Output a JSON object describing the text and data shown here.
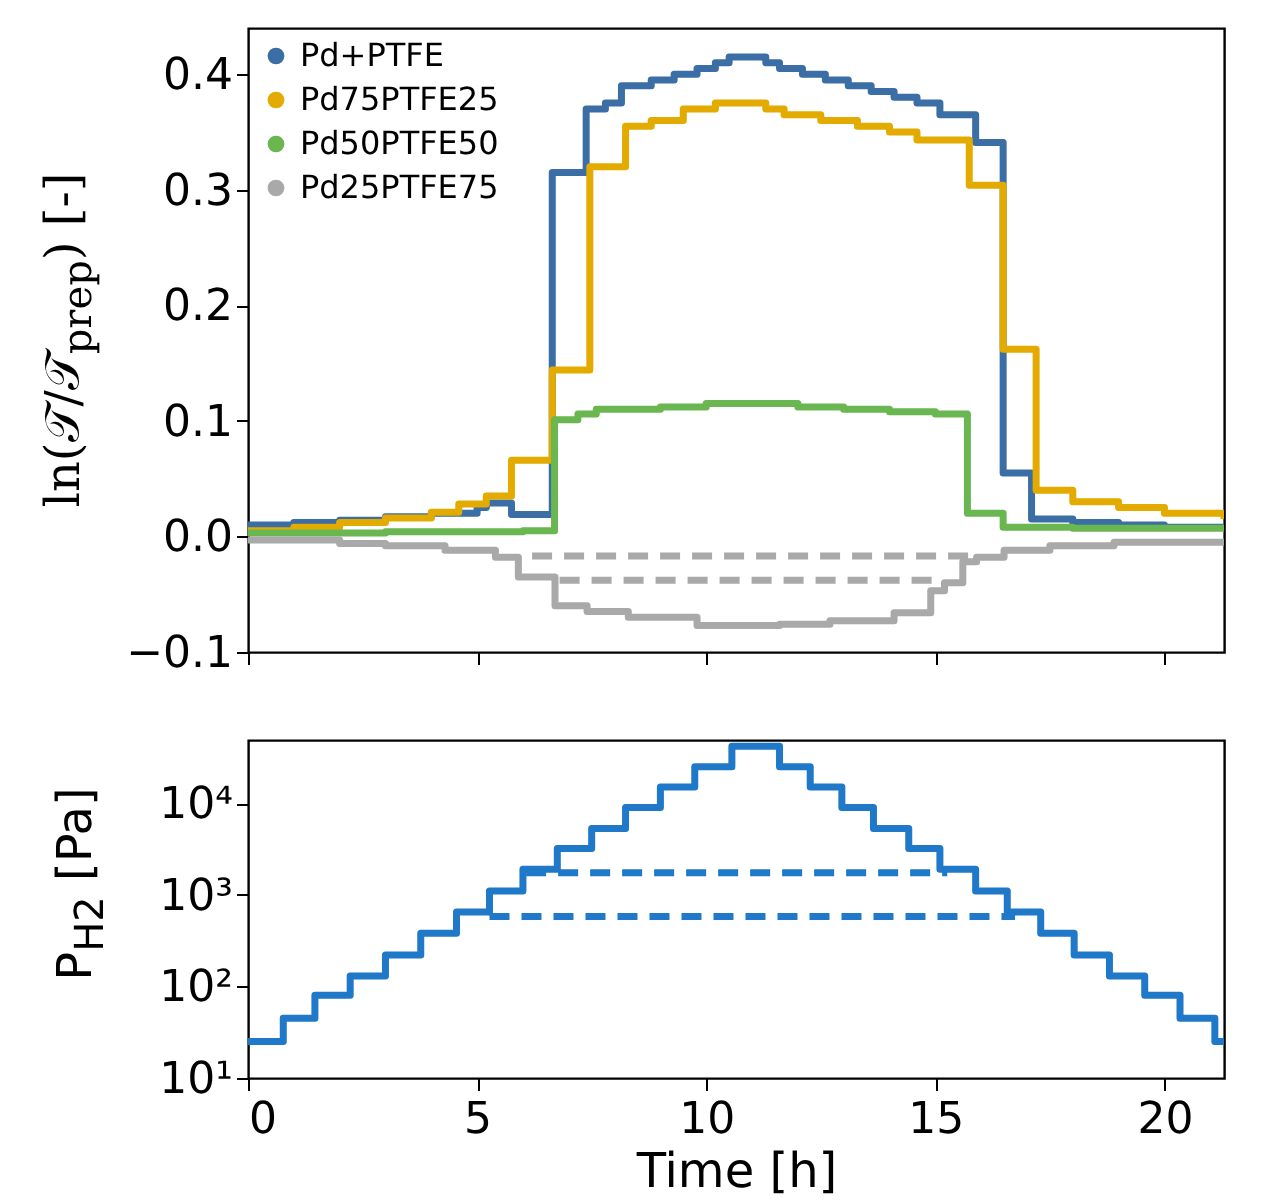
{
  "chart_data": [
    {
      "type": "step",
      "ylabel": "ln(𝒯/𝒯$_{prep}$) [-]",
      "xlim": [
        0,
        21.3
      ],
      "xticks": [
        0,
        5,
        10,
        15,
        20
      ],
      "ylim": [
        -0.1,
        0.44
      ],
      "yticks": [
        {
          "value": -0.1,
          "label": "−0.1"
        },
        {
          "value": 0,
          "label": "0.0"
        },
        0.1,
        0.2,
        0.3,
        0.4
      ],
      "tick_labels": "y",
      "legend": "top left",
      "series": [
        {
          "name": "Pd+PTFE",
          "color": "#3a6ea5",
          "x": [
            0,
            1,
            2,
            3,
            4,
            5,
            5.2,
            5.75,
            6.64,
            7.38,
            7.8,
            8.15,
            8.8,
            9.3,
            9.8,
            10.2,
            10.5,
            11.3,
            11.6,
            12.1,
            12.6,
            13.1,
            13.6,
            14.1,
            14.6,
            15.1,
            15.88,
            16.48,
            17.1,
            18,
            19,
            20,
            21.3
          ],
          "values": [
            0.01,
            0.012,
            0.014,
            0.017,
            0.02,
            0.025,
            0.029,
            0.019,
            0.315,
            0.37,
            0.375,
            0.39,
            0.395,
            0.4,
            0.405,
            0.41,
            0.415,
            0.41,
            0.405,
            0.4,
            0.395,
            0.39,
            0.385,
            0.38,
            0.375,
            0.365,
            0.341,
            0.055,
            0.015,
            0.012,
            0.01,
            0.008,
            0.007
          ]
        },
        {
          "name": "Pd75PTFE25",
          "color": "#e3aa00",
          "x": [
            0,
            1,
            2,
            3,
            4,
            4.6,
            5.2,
            5.75,
            6.64,
            7.46,
            8.24,
            8.8,
            9.5,
            10.2,
            11.3,
            11.7,
            12.5,
            13.3,
            14,
            14.6,
            15.74,
            16.48,
            17.2,
            18,
            19,
            20,
            21.3
          ],
          "values": [
            0.005,
            0.008,
            0.012,
            0.016,
            0.021,
            0.028,
            0.035,
            0.066,
            0.144,
            0.32,
            0.355,
            0.36,
            0.37,
            0.375,
            0.37,
            0.365,
            0.36,
            0.355,
            0.35,
            0.343,
            0.304,
            0.162,
            0.04,
            0.03,
            0.025,
            0.02,
            0.015
          ]
        },
        {
          "name": "Pd50PTFE50",
          "color": "#6ab650",
          "x": [
            0,
            3,
            6,
            6.69,
            7.2,
            7.6,
            9,
            10,
            11,
            12,
            13,
            14,
            15,
            15.7,
            16.48,
            18,
            21.3
          ],
          "values": [
            0.003,
            0.004,
            0.005,
            0.101,
            0.106,
            0.11,
            0.112,
            0.115,
            0.115,
            0.112,
            0.11,
            0.108,
            0.106,
            0.02,
            0.008,
            0.007,
            0.005
          ]
        },
        {
          "name": "Pd25PTFE75",
          "color": "#a9a9a9",
          "x": [
            0,
            2,
            3,
            4.3,
            5.4,
            5.9,
            6.7,
            7.4,
            8.3,
            9.8,
            11.6,
            12.7,
            14.1,
            14.9,
            15.2,
            15.6,
            15.9,
            16.5,
            17.5,
            18.9,
            21.3
          ],
          "values": [
            -0.003,
            -0.006,
            -0.008,
            -0.012,
            -0.018,
            -0.035,
            -0.06,
            -0.065,
            -0.07,
            -0.077,
            -0.076,
            -0.073,
            -0.066,
            -0.047,
            -0.04,
            -0.022,
            -0.018,
            -0.012,
            -0.008,
            -0.005,
            -0.003
          ]
        },
        {
          "type": "line",
          "line_style": "dashed",
          "color": "#a9a9a9",
          "x": [
            6.2,
            15.9
          ],
          "values": [
            -0.017,
            -0.017
          ]
        },
        {
          "type": "line",
          "line_style": "dashed",
          "color": "#a9a9a9",
          "x": [
            6.8,
            15.0
          ],
          "values": [
            -0.038,
            -0.038
          ]
        }
      ]
    },
    {
      "type": "step",
      "xlabel": "Time [h]",
      "ylabel": "P$_{H2}$ [Pa]",
      "log": "y",
      "xlim": [
        0,
        21.3
      ],
      "xticks": [
        0,
        5,
        10,
        15,
        20
      ],
      "ylim": [
        10,
        49000
      ],
      "yticks": [
        {
          "value": 10,
          "label": "10¹"
        },
        {
          "value": 100,
          "label": "10²"
        },
        {
          "value": 1000,
          "label": "10³"
        },
        {
          "value": 10000,
          "label": "10⁴"
        }
      ],
      "series": [
        {
          "color": "#1f78c8",
          "x": [
            0,
            0.77,
            1.46,
            2.23,
            3.0,
            3.77,
            4.55,
            5.27,
            6.0,
            6.75,
            7.5,
            8.24,
            9.0,
            9.75,
            10.56,
            11.6,
            12.27,
            12.96,
            13.65,
            14.42,
            15.1,
            15.88,
            16.57,
            17.3,
            18.03,
            18.8,
            19.57,
            20.34,
            21.1,
            21.3
          ],
          "values": [
            25,
            45,
            80,
            130,
            220,
            380,
            650,
            1100,
            1900,
            3200,
            5300,
            9000,
            15000,
            25000,
            42000,
            25000,
            15000,
            9000,
            5300,
            3200,
            1900,
            1100,
            650,
            380,
            220,
            130,
            80,
            45,
            25,
            25
          ]
        },
        {
          "type": "line",
          "line_style": "dashed",
          "color": "#1f78c8",
          "x": [
            6.07,
            15.26
          ],
          "values": [
            1740,
            1740
          ]
        },
        {
          "type": "line",
          "line_style": "dashed",
          "color": "#1f78c8",
          "x": [
            5.27,
            16.74
          ],
          "values": [
            580,
            580
          ]
        }
      ]
    }
  ]
}
